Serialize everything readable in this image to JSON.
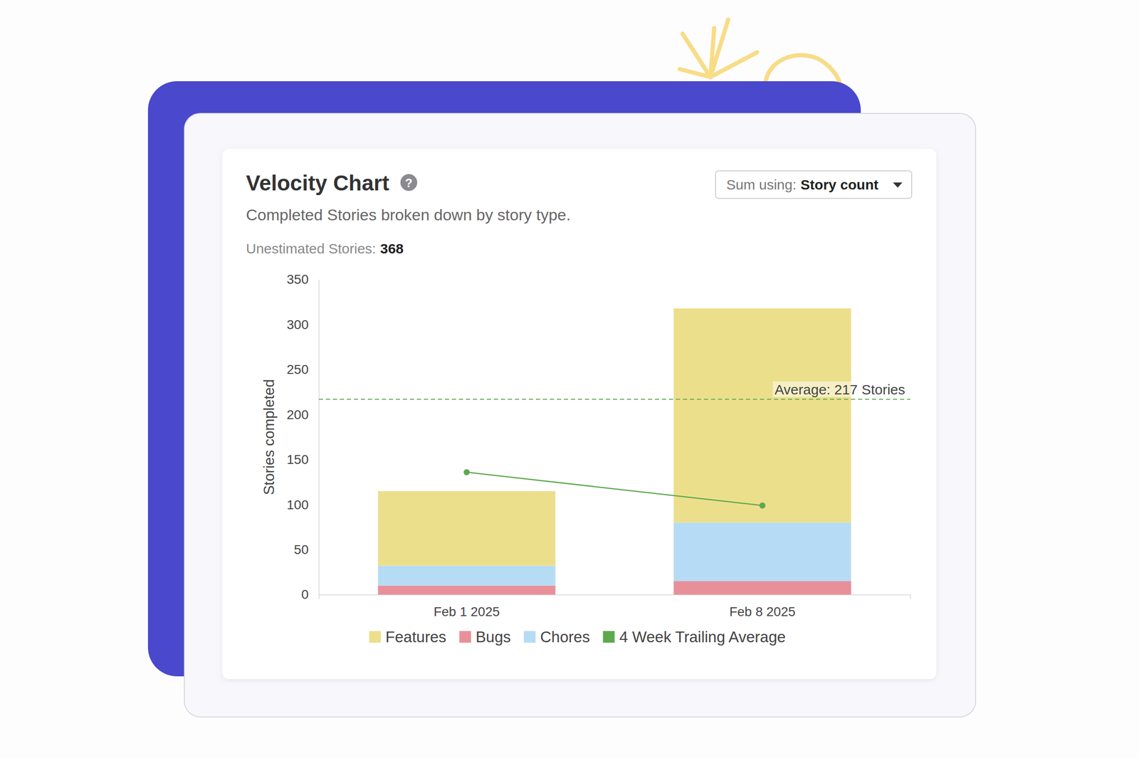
{
  "chart_data": {
    "type": "bar",
    "stacked": true,
    "title": "Velocity Chart",
    "help_icon": "?",
    "subtitle": "Completed Stories broken down by story type.",
    "annotations": [
      {
        "label": "Unestimated Stories:",
        "value": 368
      }
    ],
    "controls": [
      {
        "label": "Sum using:",
        "value": "Story count"
      }
    ],
    "categories": [
      "Feb 1 2025",
      "Feb 8 2025"
    ],
    "y_label": "Stories completed",
    "ylim": [
      0,
      350
    ],
    "yticks": [
      0,
      50,
      100,
      150,
      200,
      250,
      300,
      350
    ],
    "grid": false,
    "legend": "bottom",
    "series": [
      {
        "name": "Features",
        "color": "#ecdf8c",
        "values": [
          83,
          238
        ]
      },
      {
        "name": "Bugs",
        "color": "#e8909a",
        "values": [
          10,
          15
        ]
      },
      {
        "name": "Chores",
        "color": "#b5dcf4",
        "values": [
          22,
          65
        ]
      },
      {
        "name": "4 Week Trailing Average",
        "type": "line",
        "color": "#5ea84e",
        "marker": "circle",
        "values": [
          136,
          99
        ]
      }
    ],
    "reference_line": {
      "value": 217,
      "label": "Average: 217 Stories",
      "color": "#5ea84e",
      "line_style": "dashed"
    }
  }
}
